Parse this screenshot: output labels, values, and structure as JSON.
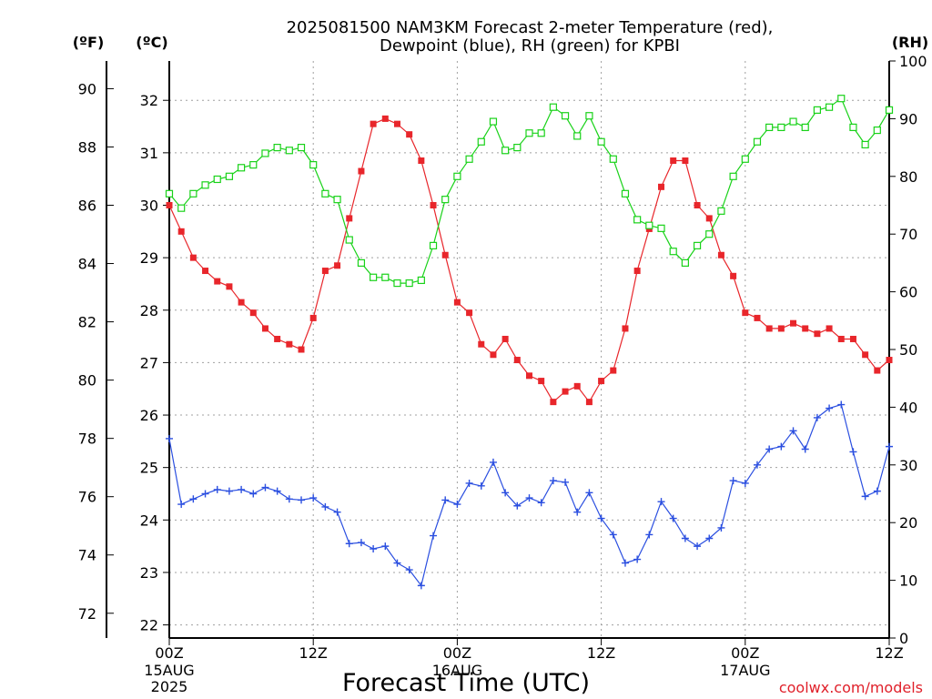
{
  "chart_data": {
    "type": "line",
    "title": "2025081500 NAM3KM Forecast 2-meter Temperature (red),",
    "subtitle": "Dewpoint (blue), RH (green) for KPBI",
    "axis_labels": {
      "fahrenheit": "(ºF)",
      "celsius": "(ºC)",
      "rh": "(RH)"
    },
    "xlabel": "Forecast Time (UTC)",
    "watermark": "coolwx.com/models",
    "x_ticks": [
      {
        "hour": 0,
        "label": "00Z",
        "sub1": "15AUG",
        "sub2": "2025"
      },
      {
        "hour": 12,
        "label": "12Z",
        "sub1": "",
        "sub2": ""
      },
      {
        "hour": 24,
        "label": "00Z",
        "sub1": "16AUG",
        "sub2": ""
      },
      {
        "hour": 36,
        "label": "12Z",
        "sub1": "",
        "sub2": ""
      },
      {
        "hour": 48,
        "label": "00Z",
        "sub1": "17AUG",
        "sub2": ""
      },
      {
        "hour": 60,
        "label": "12Z",
        "sub1": "",
        "sub2": ""
      }
    ],
    "x_range_hours": [
      0,
      60
    ],
    "celsius_range": [
      21.75,
      32.75
    ],
    "celsius_ticks": [
      "22",
      "23",
      "24",
      "25",
      "26",
      "27",
      "28",
      "29",
      "30",
      "31",
      "32"
    ],
    "fahrenheit_ticks": [
      "72",
      "74",
      "76",
      "78",
      "80",
      "82",
      "84",
      "86",
      "88",
      "90"
    ],
    "rh_range": [
      0,
      100
    ],
    "rh_ticks": [
      "0",
      "10",
      "20",
      "30",
      "40",
      "50",
      "60",
      "70",
      "80",
      "90",
      "100"
    ],
    "grid": true,
    "series": [
      {
        "key": "temperature",
        "unit": "C",
        "color": "#e8262b",
        "marker": "filled-square",
        "x": [
          0,
          1,
          2,
          3,
          4,
          5,
          6,
          7,
          8,
          9,
          10,
          11,
          12,
          13,
          14,
          15,
          16,
          17,
          18,
          19,
          20,
          21,
          22,
          23,
          24,
          25,
          26,
          27,
          28,
          29,
          30,
          31,
          32,
          33,
          34,
          35,
          36,
          37,
          38,
          39,
          40,
          41,
          42,
          43,
          44,
          45,
          46,
          47,
          48,
          49,
          50,
          51,
          52,
          53,
          54,
          55,
          56,
          57,
          58,
          59,
          60
        ],
        "values": [
          30.0,
          29.5,
          29.0,
          28.75,
          28.55,
          28.45,
          28.15,
          27.95,
          27.65,
          27.45,
          27.35,
          27.25,
          27.85,
          28.75,
          28.85,
          29.75,
          30.65,
          31.55,
          31.65,
          31.55,
          31.35,
          30.85,
          30.0,
          29.05,
          28.15,
          27.95,
          27.35,
          27.15,
          27.45,
          27.05,
          26.75,
          26.65,
          26.25,
          26.45,
          26.55,
          26.25,
          26.65,
          26.85,
          27.65,
          28.75,
          29.55,
          30.35,
          30.85,
          30.85,
          30.0,
          29.75,
          29.05,
          28.65,
          27.95,
          27.85,
          27.65,
          27.65,
          27.75,
          27.65,
          27.55,
          27.65,
          27.45,
          27.45,
          27.15,
          26.85,
          27.05
        ]
      },
      {
        "key": "dewpoint",
        "unit": "C",
        "color": "#2b4fe0",
        "marker": "plus",
        "x": [
          0,
          1,
          2,
          3,
          4,
          5,
          6,
          7,
          8,
          9,
          10,
          11,
          12,
          13,
          14,
          15,
          16,
          17,
          18,
          19,
          20,
          21,
          22,
          23,
          24,
          25,
          26,
          27,
          28,
          29,
          30,
          31,
          32,
          33,
          34,
          35,
          36,
          37,
          38,
          39,
          40,
          41,
          42,
          43,
          44,
          45,
          46,
          47,
          48,
          49,
          50,
          51,
          52,
          53,
          54,
          55,
          56,
          57,
          58,
          59,
          60
        ],
        "values": [
          25.55,
          24.3,
          24.4,
          24.5,
          24.58,
          24.55,
          24.58,
          24.5,
          24.62,
          24.55,
          24.4,
          24.38,
          24.42,
          24.25,
          24.15,
          23.55,
          23.57,
          23.45,
          23.5,
          23.18,
          23.05,
          22.75,
          23.7,
          24.38,
          24.3,
          24.7,
          24.65,
          25.1,
          24.52,
          24.27,
          24.42,
          24.33,
          24.75,
          24.72,
          24.15,
          24.52,
          24.03,
          23.72,
          23.18,
          23.25,
          23.72,
          24.35,
          24.03,
          23.65,
          23.5,
          23.65,
          23.85,
          24.75,
          24.7,
          25.05,
          25.35,
          25.4,
          25.7,
          25.35,
          25.95,
          26.13,
          26.2,
          25.3,
          24.45,
          24.55,
          25.4
        ]
      },
      {
        "key": "rh",
        "unit": "%",
        "color": "#19d219",
        "marker": "open-square",
        "x": [
          0,
          1,
          2,
          3,
          4,
          5,
          6,
          7,
          8,
          9,
          10,
          11,
          12,
          13,
          14,
          15,
          16,
          17,
          18,
          19,
          20,
          21,
          22,
          23,
          24,
          25,
          26,
          27,
          28,
          29,
          30,
          31,
          32,
          33,
          34,
          35,
          36,
          37,
          38,
          39,
          40,
          41,
          42,
          43,
          44,
          45,
          46,
          47,
          48,
          49,
          50,
          51,
          52,
          53,
          54,
          55,
          56,
          57,
          58,
          59,
          60
        ],
        "values": [
          77,
          74.5,
          77,
          78.5,
          79.5,
          80,
          81.5,
          82,
          84,
          85,
          84.5,
          85,
          82,
          77,
          76,
          69,
          65,
          62.5,
          62.5,
          61.5,
          61.5,
          62,
          68,
          76,
          80,
          83,
          86,
          89.5,
          84.5,
          85,
          87.5,
          87.5,
          92,
          90.5,
          87,
          90.5,
          86,
          83,
          77,
          72.5,
          71.5,
          71,
          67,
          65,
          68,
          70,
          74,
          80,
          83,
          86,
          88.5,
          88.5,
          89.5,
          88.5,
          91.5,
          92,
          93.5,
          88.5,
          85.5,
          88,
          91.5
        ]
      }
    ]
  }
}
